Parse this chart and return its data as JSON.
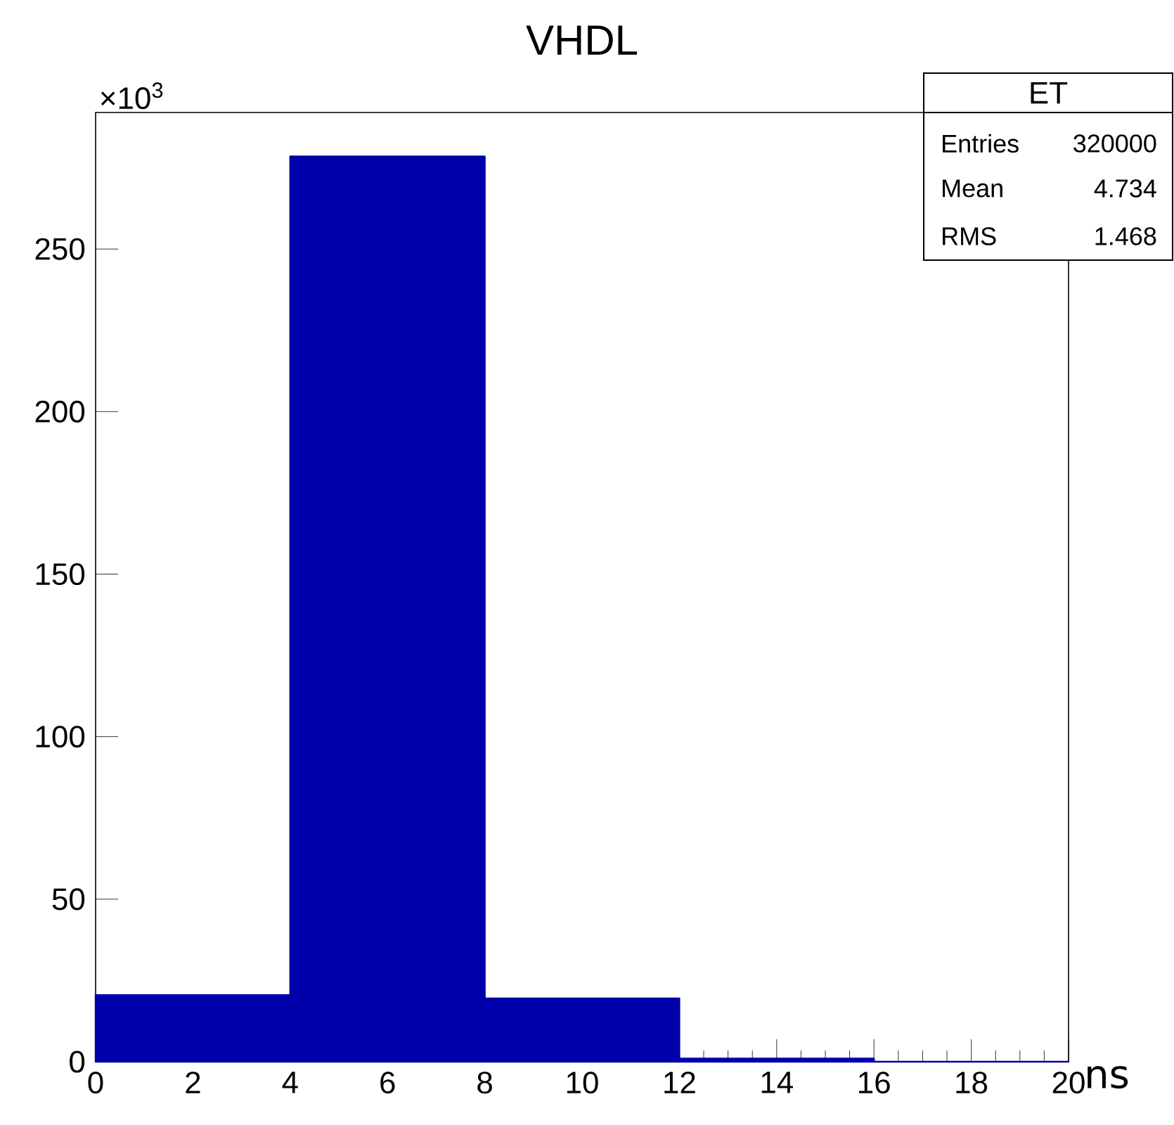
{
  "chart_data": {
    "type": "histogram",
    "title": "VHDL",
    "xlabel": "ns",
    "bins": [
      0,
      4,
      8,
      12,
      16,
      20
    ],
    "values": [
      20.5,
      278.5,
      19.5,
      1,
      0
    ],
    "color": "#0000aa",
    "xlim": [
      0,
      20
    ],
    "xticks": [
      0,
      2,
      4,
      6,
      8,
      10,
      12,
      14,
      16,
      18,
      20
    ],
    "ylim": [
      0,
      292
    ],
    "yticks": [
      0,
      50,
      100,
      150,
      200,
      250
    ],
    "grid": false,
    "annotations": [
      "×10$^{3}$",
      "ET",
      "Entries",
      "320000",
      "Mean",
      "4.734",
      "RMS",
      "1.468"
    ]
  }
}
